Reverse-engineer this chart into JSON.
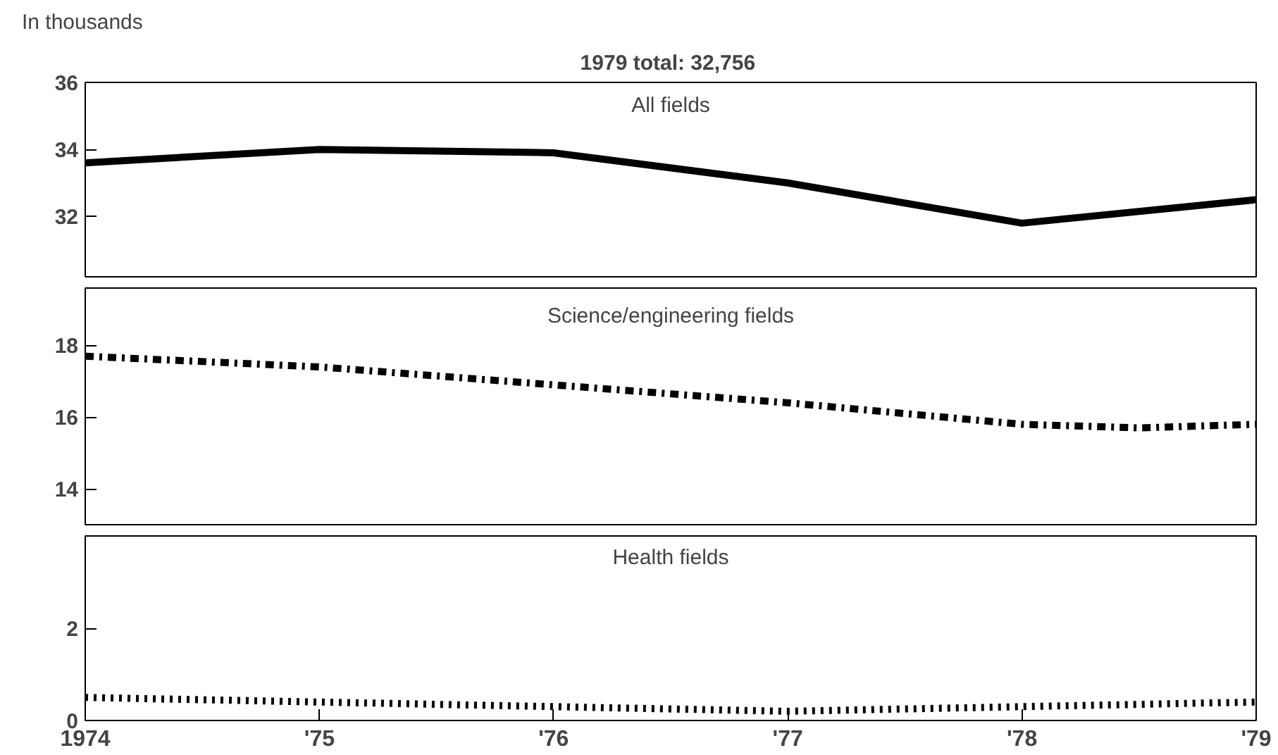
{
  "chart_data": [
    {
      "type": "line",
      "title": "1979 total:  32,756",
      "ylabel": "In thousands",
      "x": [
        1974,
        1975,
        1976,
        1977,
        1978,
        1979
      ],
      "xlim": [
        1974,
        1979
      ],
      "ylim": [
        30.2,
        36
      ],
      "yticks": [
        32,
        34,
        36
      ],
      "tick_labels": "y",
      "grid": false,
      "series": [
        {
          "name": "All fields",
          "color": "#000000",
          "line_style": "solid",
          "values": [
            33.6,
            34.0,
            33.9,
            33.0,
            31.8,
            32.5
          ]
        }
      ]
    },
    {
      "type": "line",
      "x": [
        1974,
        1975,
        1976,
        1977,
        1978,
        1978.5,
        1979
      ],
      "xlim": [
        1974,
        1979
      ],
      "ylim": [
        13,
        19.6
      ],
      "yticks": [
        14,
        16,
        18
      ],
      "tick_labels": "y",
      "grid": false,
      "series": [
        {
          "name": "Science/engineering fields",
          "color": "#000000",
          "line_style": "dashdot",
          "values": [
            17.7,
            17.4,
            16.9,
            16.4,
            15.8,
            15.7,
            15.8
          ]
        }
      ]
    },
    {
      "type": "line",
      "x": [
        1974,
        1975,
        1976,
        1977,
        1978,
        1979
      ],
      "xlim": [
        1974,
        1979
      ],
      "ylim": [
        0,
        4
      ],
      "yticks": [
        0,
        2
      ],
      "xticks": [
        {
          "value": 1974,
          "label": "1974"
        },
        {
          "value": 1975,
          "label": "'75"
        },
        {
          "value": 1976,
          "label": "'76"
        },
        {
          "value": 1977,
          "label": "'77"
        },
        {
          "value": 1978,
          "label": "'78"
        },
        {
          "value": 1979,
          "label": "'79"
        }
      ],
      "grid": false,
      "series": [
        {
          "name": "Health fields",
          "color": "#000000",
          "line_style": "dotted",
          "values": [
            0.5,
            0.4,
            0.3,
            0.2,
            0.3,
            0.4
          ]
        }
      ]
    }
  ]
}
